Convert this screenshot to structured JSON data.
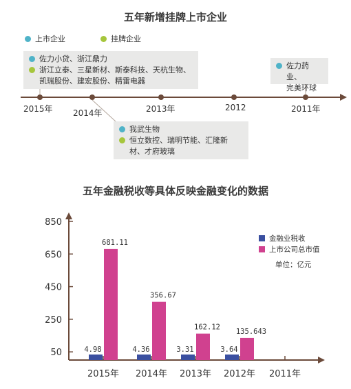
{
  "timeline": {
    "title": "五年新增挂牌上市企业",
    "legend": [
      {
        "label": "上市企业",
        "color": "#4fb3c8"
      },
      {
        "label": "挂牌企业",
        "color": "#a6c63c"
      }
    ],
    "years": [
      "2015年",
      "2014年",
      "2013年",
      "2012",
      "2011年"
    ],
    "boxes": [
      {
        "listed": "佐力小贷、浙江鼎力",
        "quoted_line1": "浙江立泰、三星新材、斯泰科技、天杭生物、",
        "quoted_line2": "凯瑞股份、建宏股份、精雷电器"
      },
      {
        "listed": "我武生物",
        "quoted_line1": "恒立数控、瑞明节能、汇隆新",
        "quoted_line2": "材、才府玻璃"
      },
      {
        "listed_line1": "佐力药业、",
        "listed_line2": "完美环球"
      }
    ],
    "line_color": "#6b4a3a"
  },
  "chart_data": {
    "type": "bar",
    "title": "五年金融税收等具体反映金融变化的数据",
    "unit": "单位：亿元",
    "categories": [
      "2015年",
      "2014年",
      "2013年",
      "2012年",
      "2011年"
    ],
    "yticks": [
      50,
      250,
      450,
      650,
      850
    ],
    "series": [
      {
        "name": "金融业税收",
        "color": "#3a4fa0",
        "values": [
          4.98,
          4.36,
          3.31,
          3.64,
          null
        ],
        "labels": [
          "4.98",
          "4.36",
          "3.31",
          "3.64",
          ""
        ]
      },
      {
        "name": "上市公司总市值",
        "color": "#d0418f",
        "values": [
          681.11,
          356.67,
          162.12,
          135.643,
          null
        ],
        "labels": [
          "681.11",
          "356.67",
          "162.12",
          "135.643",
          ""
        ]
      }
    ],
    "axis_color": "#6b4a3a"
  }
}
